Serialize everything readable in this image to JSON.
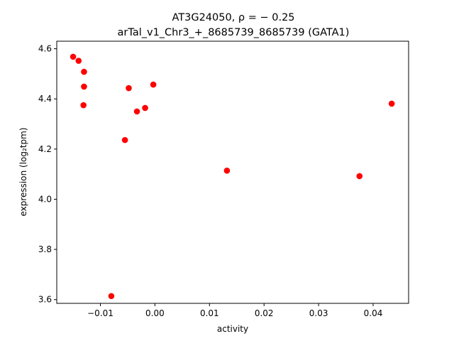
{
  "chart_data": {
    "type": "scatter",
    "title_line1": "AT3G24050, ρ = − 0.25",
    "title_line2": "arTal_v1_Chr3_+_8685739_8685739 (GATA1)",
    "xlabel": "activity",
    "ylabel": "expression (log₂tpm)",
    "xlim": [
      -0.018,
      0.0465
    ],
    "ylim": [
      3.585,
      4.63
    ],
    "xticks": [
      -0.01,
      0.0,
      0.01,
      0.02,
      0.03,
      0.04
    ],
    "xtick_labels": [
      "−0.01",
      "0.00",
      "0.01",
      "0.02",
      "0.03",
      "0.04"
    ],
    "yticks": [
      3.6,
      3.8,
      4.0,
      4.2,
      4.4,
      4.6
    ],
    "ytick_labels": [
      "3.6",
      "3.8",
      "4.0",
      "4.2",
      "4.4",
      "4.6"
    ],
    "grid": false,
    "legend": "none",
    "marker_color": "#ff0000",
    "points": [
      {
        "x": -0.015,
        "y": 4.568
      },
      {
        "x": -0.014,
        "y": 4.552
      },
      {
        "x": -0.013,
        "y": 4.508
      },
      {
        "x": -0.013,
        "y": 4.449
      },
      {
        "x": -0.0131,
        "y": 4.375
      },
      {
        "x": -0.008,
        "y": 3.614
      },
      {
        "x": -0.0055,
        "y": 4.236
      },
      {
        "x": -0.0048,
        "y": 4.443
      },
      {
        "x": -0.0033,
        "y": 4.35
      },
      {
        "x": -0.0018,
        "y": 4.364
      },
      {
        "x": -0.0003,
        "y": 4.457
      },
      {
        "x": 0.0132,
        "y": 4.114
      },
      {
        "x": 0.0375,
        "y": 4.092
      },
      {
        "x": 0.0434,
        "y": 4.381
      }
    ]
  }
}
